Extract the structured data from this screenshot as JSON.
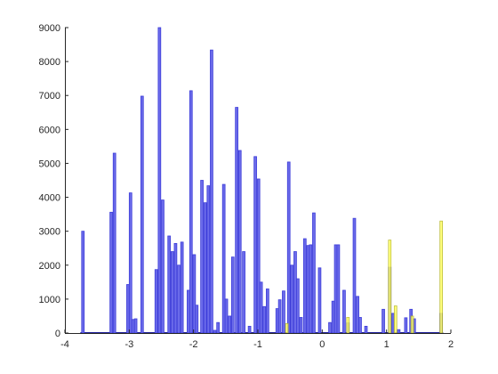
{
  "chart_data": {
    "type": "bar",
    "title": "",
    "xlabel": "",
    "ylabel": "",
    "xlim": [
      -4,
      2
    ],
    "ylim": [
      0,
      9000
    ],
    "xticks": [
      -4,
      -3,
      -2,
      -1,
      0,
      1,
      2
    ],
    "yticks": [
      0,
      1000,
      2000,
      3000,
      4000,
      5000,
      6000,
      7000,
      8000,
      9000
    ],
    "bin_width": 0.04,
    "grid": false,
    "legend": "none",
    "series": [
      {
        "color": "#3d3dd9",
        "fill": "#6b6bea",
        "bars": [
          {
            "x": -3.72,
            "y": 3000
          },
          {
            "x": -3.28,
            "y": 3560
          },
          {
            "x": -3.23,
            "y": 5300
          },
          {
            "x": -3.02,
            "y": 1430
          },
          {
            "x": -2.98,
            "y": 4130
          },
          {
            "x": -2.94,
            "y": 400
          },
          {
            "x": -2.9,
            "y": 420
          },
          {
            "x": -2.8,
            "y": 6980
          },
          {
            "x": -2.58,
            "y": 1870
          },
          {
            "x": -2.53,
            "y": 9000
          },
          {
            "x": -2.48,
            "y": 3920
          },
          {
            "x": -2.38,
            "y": 2860
          },
          {
            "x": -2.33,
            "y": 2400
          },
          {
            "x": -2.28,
            "y": 2640
          },
          {
            "x": -2.23,
            "y": 2000
          },
          {
            "x": -2.18,
            "y": 2680
          },
          {
            "x": -2.08,
            "y": 1260
          },
          {
            "x": -2.04,
            "y": 7140
          },
          {
            "x": -1.99,
            "y": 2310
          },
          {
            "x": -1.95,
            "y": 820
          },
          {
            "x": -1.87,
            "y": 4500
          },
          {
            "x": -1.82,
            "y": 3840
          },
          {
            "x": -1.77,
            "y": 4340
          },
          {
            "x": -1.72,
            "y": 8340
          },
          {
            "x": -1.67,
            "y": 80
          },
          {
            "x": -1.62,
            "y": 310
          },
          {
            "x": -1.53,
            "y": 4380
          },
          {
            "x": -1.49,
            "y": 1000
          },
          {
            "x": -1.44,
            "y": 500
          },
          {
            "x": -1.39,
            "y": 2240
          },
          {
            "x": -1.33,
            "y": 6650
          },
          {
            "x": -1.28,
            "y": 5380
          },
          {
            "x": -1.22,
            "y": 2400
          },
          {
            "x": -1.13,
            "y": 200
          },
          {
            "x": -1.04,
            "y": 5200
          },
          {
            "x": -0.99,
            "y": 4540
          },
          {
            "x": -0.95,
            "y": 1500
          },
          {
            "x": -0.9,
            "y": 780
          },
          {
            "x": -0.85,
            "y": 1300
          },
          {
            "x": -0.7,
            "y": 720
          },
          {
            "x": -0.66,
            "y": 980
          },
          {
            "x": -0.6,
            "y": 1240
          },
          {
            "x": -0.52,
            "y": 5040
          },
          {
            "x": -0.47,
            "y": 2000
          },
          {
            "x": -0.42,
            "y": 2400
          },
          {
            "x": -0.38,
            "y": 1600
          },
          {
            "x": -0.33,
            "y": 460
          },
          {
            "x": -0.27,
            "y": 2780
          },
          {
            "x": -0.22,
            "y": 2580
          },
          {
            "x": -0.18,
            "y": 2600
          },
          {
            "x": -0.13,
            "y": 3540
          },
          {
            "x": -0.04,
            "y": 1920
          },
          {
            "x": 0.12,
            "y": 310
          },
          {
            "x": 0.17,
            "y": 940
          },
          {
            "x": 0.21,
            "y": 2600
          },
          {
            "x": 0.25,
            "y": 2600
          },
          {
            "x": 0.34,
            "y": 1260
          },
          {
            "x": 0.4,
            "y": 300
          },
          {
            "x": 0.5,
            "y": 3380
          },
          {
            "x": 0.55,
            "y": 1080
          },
          {
            "x": 0.59,
            "y": 460
          },
          {
            "x": 0.68,
            "y": 200
          },
          {
            "x": 0.95,
            "y": 700
          },
          {
            "x": 1.05,
            "y": 1940
          },
          {
            "x": 1.1,
            "y": 580
          },
          {
            "x": 1.19,
            "y": 100
          },
          {
            "x": 1.3,
            "y": 450
          },
          {
            "x": 1.38,
            "y": 700
          },
          {
            "x": 1.43,
            "y": 420
          },
          {
            "x": 1.85,
            "y": 580
          }
        ]
      },
      {
        "color": "#b5b520",
        "fill": "#ffff66",
        "bars": [
          {
            "x": -0.55,
            "y": 280
          },
          {
            "x": 0.4,
            "y": 460
          },
          {
            "x": 1.05,
            "y": 2740
          },
          {
            "x": 1.14,
            "y": 800
          },
          {
            "x": 1.4,
            "y": 500
          },
          {
            "x": 1.85,
            "y": 3300
          }
        ]
      }
    ]
  }
}
